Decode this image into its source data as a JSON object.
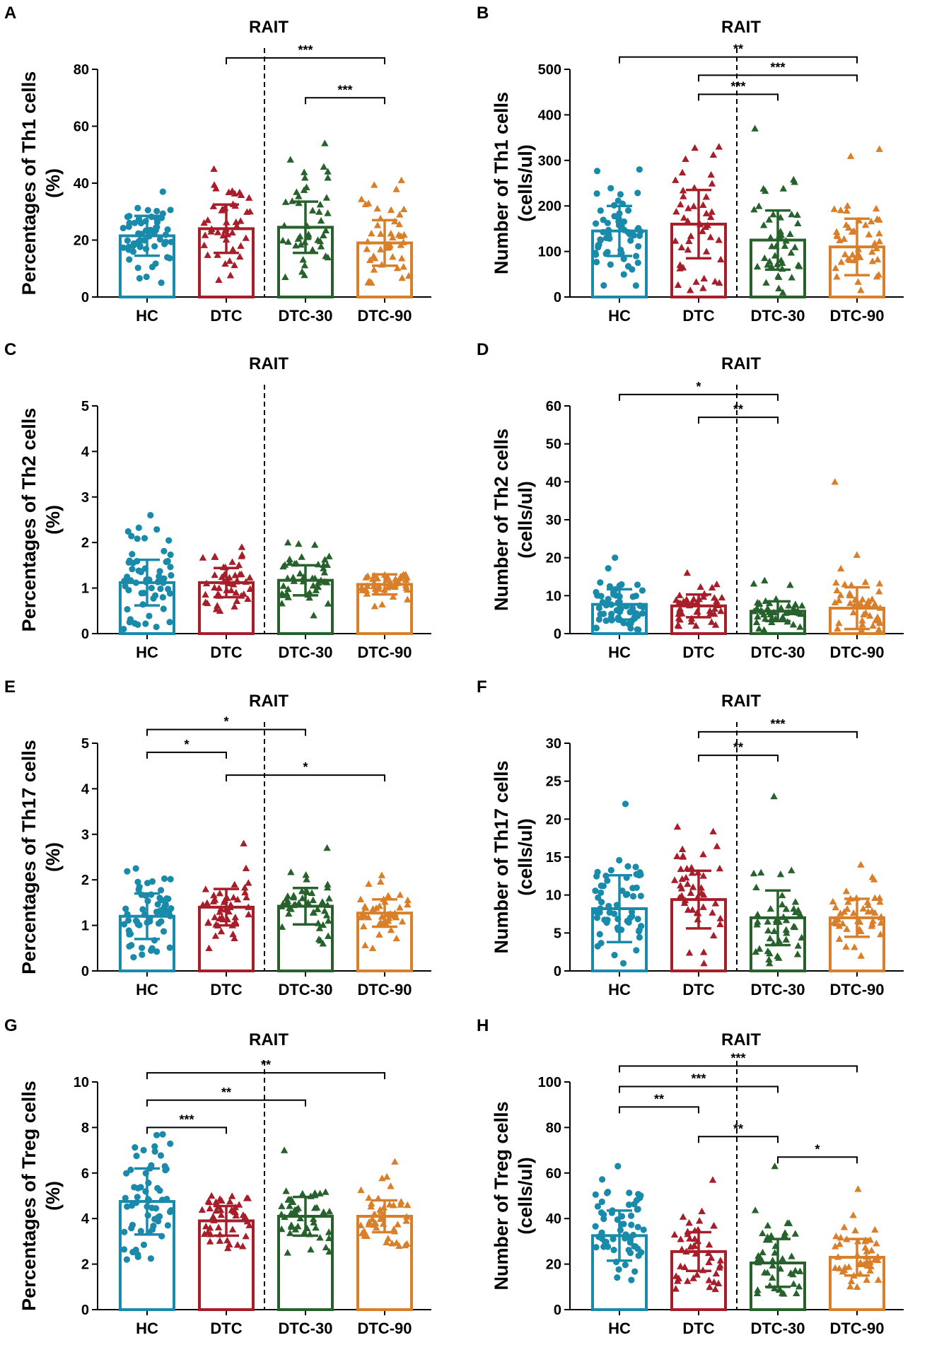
{
  "chart_data": [
    {
      "panel": "A",
      "type": "bar",
      "title": "RAIT",
      "ylabel": [
        "Percentages of Th1 cells",
        "(%)"
      ],
      "categories": [
        "HC",
        "DTC",
        "DTC-30",
        "DTC-90"
      ],
      "yticks": [
        "0",
        "20",
        "40",
        "60",
        "80"
      ],
      "ylim": [
        0,
        80
      ],
      "means": [
        21.5,
        24,
        24.5,
        19
      ],
      "sd": [
        7,
        8.5,
        9,
        8
      ],
      "ranges": [
        [
          5,
          37
        ],
        [
          6,
          45
        ],
        [
          7,
          54
        ],
        [
          5,
          41
        ]
      ],
      "counts": [
        60,
        45,
        45,
        45
      ],
      "significance": [
        {
          "from": 1,
          "to": 3,
          "label": "***",
          "y": 84
        },
        {
          "from": 2,
          "to": 3,
          "label": "***",
          "y": 70
        }
      ]
    },
    {
      "panel": "B",
      "type": "bar",
      "title": "RAIT",
      "ylabel": [
        "Number of Th1 cells",
        "(cells/ul)"
      ],
      "categories": [
        "HC",
        "DTC",
        "DTC-30",
        "DTC-90"
      ],
      "yticks": [
        "0",
        "100",
        "200",
        "300",
        "400",
        "500"
      ],
      "ylim": [
        0,
        500
      ],
      "means": [
        145,
        160,
        125,
        110
      ],
      "sd": [
        55,
        75,
        65,
        62
      ],
      "ranges": [
        [
          25,
          280
        ],
        [
          15,
          330
        ],
        [
          10,
          370
        ],
        [
          15,
          325
        ]
      ],
      "counts": [
        60,
        45,
        45,
        45
      ],
      "significance": [
        {
          "from": 0,
          "to": 3,
          "label": "**",
          "y": 527
        },
        {
          "from": 1,
          "to": 3,
          "label": "***",
          "y": 487
        },
        {
          "from": 1,
          "to": 2,
          "label": "***",
          "y": 445
        }
      ]
    },
    {
      "panel": "C",
      "type": "bar",
      "title": "RAIT",
      "ylabel": [
        "Percentages of Th2 cells",
        "(%)"
      ],
      "categories": [
        "HC",
        "DTC",
        "DTC-30",
        "DTC-90"
      ],
      "yticks": [
        "0",
        "1",
        "2",
        "3",
        "4",
        "5"
      ],
      "ylim": [
        0,
        5
      ],
      "means": [
        1.12,
        1.12,
        1.17,
        1.08
      ],
      "sd": [
        0.5,
        0.32,
        0.33,
        0.22
      ],
      "ranges": [
        [
          0.1,
          2.6
        ],
        [
          0.5,
          1.9
        ],
        [
          0.4,
          2.0
        ],
        [
          0.6,
          1.3
        ]
      ],
      "counts": [
        60,
        45,
        45,
        45
      ],
      "significance": []
    },
    {
      "panel": "D",
      "type": "bar",
      "title": "RAIT",
      "ylabel": [
        "Number of Th2 cells",
        "(cells/ul)"
      ],
      "categories": [
        "HC",
        "DTC",
        "DTC-30",
        "DTC-90"
      ],
      "yticks": [
        "0",
        "10",
        "20",
        "30",
        "40",
        "50",
        "60"
      ],
      "ylim": [
        0,
        60
      ],
      "means": [
        7.7,
        7.3,
        5.9,
        6.7
      ],
      "sd": [
        4,
        3,
        2.6,
        5.5
      ],
      "ranges": [
        [
          1,
          20
        ],
        [
          2,
          16
        ],
        [
          1,
          14
        ],
        [
          1,
          40
        ]
      ],
      "counts": [
        60,
        45,
        45,
        45
      ],
      "significance": [
        {
          "from": 0,
          "to": 2,
          "label": "*",
          "y": 63
        },
        {
          "from": 1,
          "to": 2,
          "label": "**",
          "y": 57
        }
      ]
    },
    {
      "panel": "E",
      "type": "bar",
      "title": "RAIT",
      "ylabel": [
        "Percentages of Th17 cells",
        "(%)"
      ],
      "categories": [
        "HC",
        "DTC",
        "DTC-30",
        "DTC-90"
      ],
      "yticks": [
        "0",
        "1",
        "2",
        "3",
        "4",
        "5"
      ],
      "ylim": [
        0,
        5
      ],
      "means": [
        1.2,
        1.4,
        1.42,
        1.27
      ],
      "sd": [
        0.5,
        0.4,
        0.4,
        0.3
      ],
      "ranges": [
        [
          0.3,
          2.25
        ],
        [
          0.5,
          2.8
        ],
        [
          0.6,
          2.7
        ],
        [
          0.5,
          2.1
        ]
      ],
      "counts": [
        60,
        45,
        45,
        45
      ],
      "significance": [
        {
          "from": 0,
          "to": 2,
          "label": "*",
          "y": 5.3
        },
        {
          "from": 0,
          "to": 1,
          "label": "*",
          "y": 4.8
        },
        {
          "from": 1,
          "to": 3,
          "label": "*",
          "y": 4.3
        }
      ]
    },
    {
      "panel": "F",
      "type": "bar",
      "title": "RAIT",
      "ylabel": [
        "Number of Th17 cells",
        "(cells/ul)"
      ],
      "categories": [
        "HC",
        "DTC",
        "DTC-30",
        "DTC-90"
      ],
      "yticks": [
        "0",
        "5",
        "10",
        "15",
        "20",
        "25",
        "30"
      ],
      "ylim": [
        0,
        30
      ],
      "means": [
        8.2,
        9.4,
        7,
        7
      ],
      "sd": [
        4.4,
        3.8,
        3.6,
        2.5
      ],
      "ranges": [
        [
          1,
          22
        ],
        [
          1,
          19
        ],
        [
          1,
          23
        ],
        [
          2,
          14
        ]
      ],
      "counts": [
        60,
        45,
        45,
        45
      ],
      "significance": [
        {
          "from": 1,
          "to": 3,
          "label": "***",
          "y": 31.5
        },
        {
          "from": 1,
          "to": 2,
          "label": "**",
          "y": 28.4
        }
      ]
    },
    {
      "panel": "G",
      "type": "bar",
      "title": "RAIT",
      "ylabel": [
        "Percentages of Treg cells",
        "(%)"
      ],
      "categories": [
        "HC",
        "DTC",
        "DTC-30",
        "DTC-90"
      ],
      "yticks": [
        "0",
        "2",
        "4",
        "6",
        "8",
        "10"
      ],
      "ylim": [
        0,
        10
      ],
      "means": [
        4.75,
        3.9,
        4.1,
        4.1
      ],
      "sd": [
        1.45,
        0.65,
        0.85,
        0.7
      ],
      "ranges": [
        [
          2.2,
          7.7
        ],
        [
          2.7,
          5.0
        ],
        [
          2.5,
          7.0
        ],
        [
          2.8,
          6.5
        ]
      ],
      "counts": [
        60,
        45,
        45,
        45
      ],
      "significance": [
        {
          "from": 0,
          "to": 3,
          "label": "**",
          "y": 10.4
        },
        {
          "from": 0,
          "to": 2,
          "label": "**",
          "y": 9.2
        },
        {
          "from": 0,
          "to": 1,
          "label": "***",
          "y": 8.0
        }
      ]
    },
    {
      "panel": "H",
      "type": "bar",
      "title": "RAIT",
      "ylabel": [
        "Number of Treg cells",
        "(cells/ul)"
      ],
      "categories": [
        "HC",
        "DTC",
        "DTC-30",
        "DTC-90"
      ],
      "yticks": [
        "0",
        "20",
        "40",
        "60",
        "80",
        "100"
      ],
      "ylim": [
        0,
        100
      ],
      "means": [
        32.5,
        25.5,
        20.5,
        23
      ],
      "sd": [
        11,
        8.5,
        10.5,
        8
      ],
      "ranges": [
        [
          13,
          63
        ],
        [
          9,
          57
        ],
        [
          7,
          63
        ],
        [
          10,
          53
        ]
      ],
      "counts": [
        60,
        45,
        45,
        45
      ],
      "significance": [
        {
          "from": 0,
          "to": 3,
          "label": "***",
          "y": 107
        },
        {
          "from": 0,
          "to": 2,
          "label": "***",
          "y": 98
        },
        {
          "from": 0,
          "to": 1,
          "label": "**",
          "y": 89
        },
        {
          "from": 1,
          "to": 2,
          "label": "**",
          "y": 76
        },
        {
          "from": 2,
          "to": 3,
          "label": "*",
          "y": 67
        }
      ]
    }
  ],
  "colors": {
    "HC": "#1a8aab",
    "DTC": "#a61e2a",
    "DTC-30": "#27612c",
    "DTC-90": "#d97f2a"
  }
}
